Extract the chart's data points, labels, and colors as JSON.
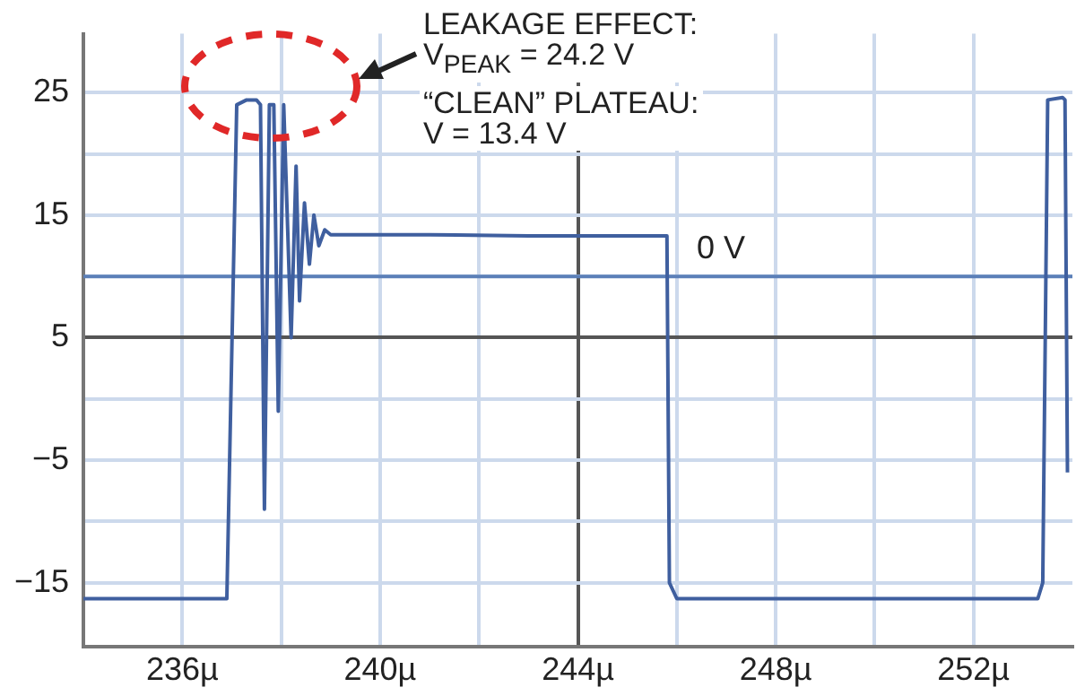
{
  "chart_data": {
    "type": "line",
    "annotations": [
      "LEAKAGE EFFECT:\nV$_{PEAK}$ = 24.2 V",
      "“CLEAN” PLATEAU:\nV = 13.4 V"
    ],
    "series": [
      {
        "color": "#3f5f9f",
        "x": [
          234,
          236.9,
          237.1,
          237.3,
          237.5,
          237.58,
          237.66,
          237.76,
          237.85,
          237.94,
          238.05,
          238.2,
          238.3,
          238.37,
          238.47,
          238.57,
          238.66,
          238.76,
          238.88,
          239.0,
          241,
          243,
          245.8,
          245.85,
          246,
          250,
          253.3,
          253.4,
          253.5,
          253.8,
          253.85,
          253.9
        ],
        "values": [
          -16.3,
          -16.3,
          24.0,
          24.4,
          24.4,
          24.0,
          -9.0,
          24.0,
          24.0,
          -1.0,
          24.0,
          5.0,
          19.0,
          8.0,
          16.0,
          11.0,
          15.0,
          12.5,
          13.8,
          13.4,
          13.4,
          13.3,
          13.3,
          -15.0,
          -16.3,
          -16.3,
          -16.3,
          -15.0,
          24.4,
          24.6,
          24.4,
          -6.0
        ]
      }
    ],
    "xlim": [
      234,
      254
    ],
    "xticks": [
      {
        "value": 236,
        "label": "236µ"
      },
      {
        "value": 238,
        "label": null
      },
      {
        "value": 240,
        "label": "240µ"
      },
      {
        "value": 242,
        "label": null
      },
      {
        "value": 244,
        "label": "244µ"
      },
      {
        "value": 246,
        "label": null
      },
      {
        "value": 248,
        "label": "248µ"
      },
      {
        "value": 250,
        "label": null
      },
      {
        "value": 252,
        "label": "252µ"
      }
    ],
    "ylim": [
      -20.2,
      29.8
    ],
    "yticks": [
      {
        "value": -15,
        "label": "−15"
      },
      {
        "value": -10,
        "label": null
      },
      {
        "value": -5,
        "label": "−5"
      },
      {
        "value": 0,
        "label": null
      },
      5,
      {
        "value": 10,
        "label": null
      },
      15,
      {
        "value": 20,
        "label": null
      },
      25
    ],
    "ref_lines": [
      {
        "axis": "y",
        "value": 10,
        "label": "0 V",
        "color": "#5b7fb8"
      }
    ],
    "grid": true,
    "legend": false,
    "marker": "none",
    "line_style": "solid"
  }
}
